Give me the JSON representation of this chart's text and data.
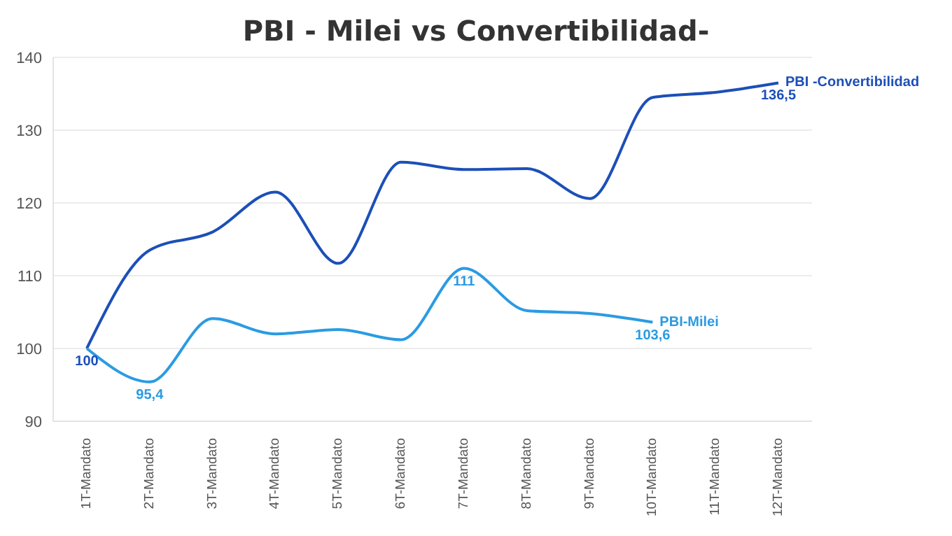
{
  "chart_data": {
    "type": "line",
    "title": "PBI - Milei vs Convertibilidad-",
    "categories": [
      "1T-Mandato",
      "2T-Mandato",
      "3T-Mandato",
      "4T-Mandato",
      "5T-Mandato",
      "6T-Mandato",
      "7T-Mandato",
      "8T-Mandato",
      "9T-Mandato",
      "10T-Mandato",
      "11T-Mandato",
      "12T-Mandato"
    ],
    "series": [
      {
        "name": "PBI -Convertibilidad",
        "color": "#1c4fb8",
        "values": [
          100,
          113.5,
          116,
          121.5,
          111.7,
          125.6,
          124.6,
          124.7,
          120.6,
          134.5,
          135.2,
          136.5
        ],
        "value_labels": [
          "100",
          null,
          null,
          null,
          null,
          null,
          null,
          null,
          null,
          null,
          null,
          "136,5"
        ]
      },
      {
        "name": "PBI-Milei",
        "color": "#2b9be2",
        "values": [
          100,
          95.4,
          104.1,
          102,
          102.6,
          101.2,
          111,
          105.2,
          104.8,
          103.6,
          null,
          null
        ],
        "value_labels": [
          null,
          "95,4",
          null,
          null,
          null,
          null,
          "111",
          null,
          null,
          "103,6",
          null,
          null
        ]
      }
    ],
    "ylim": [
      90,
      140
    ],
    "yticks": [
      90,
      100,
      110,
      120,
      130,
      140
    ],
    "grid": "y",
    "marker": "none",
    "line_style": "solid"
  }
}
